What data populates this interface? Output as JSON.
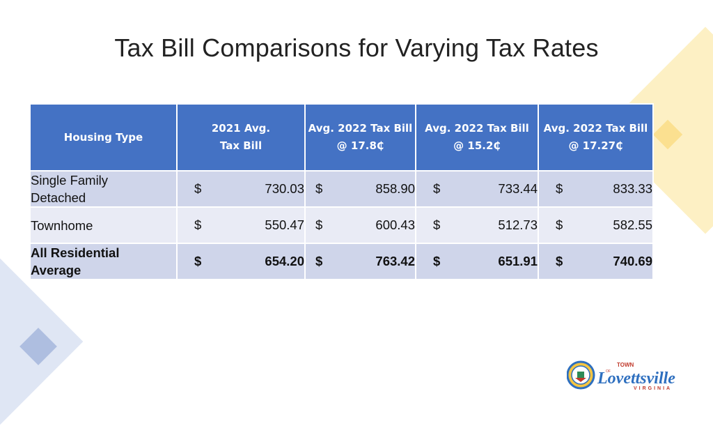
{
  "title": "Tax Bill Comparisons for Varying Tax Rates",
  "table": {
    "headers": [
      "Housing Type",
      "2021 Avg.\nTax Bill",
      "Avg. 2022 Tax Bill\n@ 17.8₵",
      "Avg. 2022 Tax Bill\n@ 15.2₵",
      "Avg. 2022 Tax Bill\n@ 17.27₵"
    ],
    "rows": [
      {
        "type": "Single Family\nDetached",
        "cells": [
          {
            "cur": "$",
            "val": "730.03"
          },
          {
            "cur": "$",
            "val": "858.90"
          },
          {
            "cur": "$",
            "val": "733.44"
          },
          {
            "cur": "$",
            "val": "833.33"
          }
        ]
      },
      {
        "type": "Townhome",
        "cells": [
          {
            "cur": "$",
            "val": "550.47"
          },
          {
            "cur": "$",
            "val": "600.43"
          },
          {
            "cur": "$",
            "val": "512.73"
          },
          {
            "cur": "$",
            "val": "582.55"
          }
        ]
      },
      {
        "type": "All Residential\nAverage",
        "cells": [
          {
            "cur": "$",
            "val": "654.20"
          },
          {
            "cur": "$",
            "val": "763.42"
          },
          {
            "cur": "$",
            "val": "651.91"
          },
          {
            "cur": "$",
            "val": "740.69"
          }
        ]
      }
    ]
  },
  "logo": {
    "town": "TOWN",
    "of": "OF",
    "name": "Lovettsville",
    "state": "VIRGINIA"
  },
  "colors": {
    "header": "#4472c4",
    "row_dark": "#cfd5ea",
    "row_light": "#e9ebf5"
  }
}
